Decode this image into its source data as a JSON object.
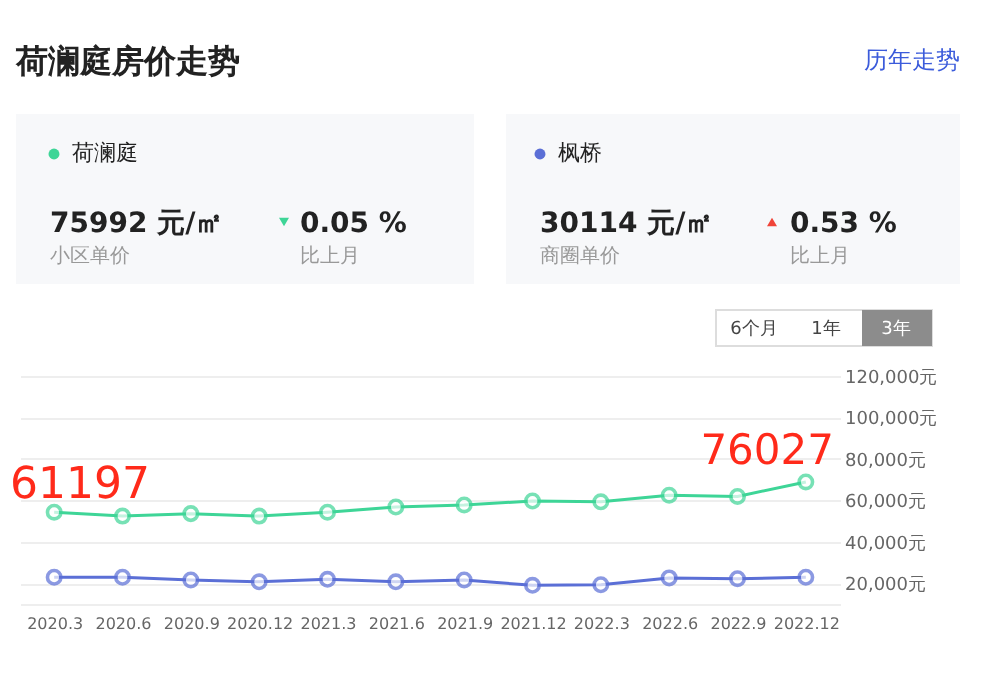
{
  "chart_data": {
    "type": "line",
    "title": "荷澜庭房价走势",
    "categories": [
      "2020.3",
      "2020.6",
      "2020.9",
      "2020.12",
      "2021.3",
      "2021.6",
      "2021.9",
      "2021.12",
      "2022.3",
      "2022.6",
      "2022.9",
      "2022.12"
    ],
    "series": [
      {
        "name": "荷澜庭",
        "color": "#3ed597",
        "values": [
          54300,
          52400,
          53600,
          52400,
          54300,
          56800,
          57800,
          59700,
          59300,
          62500,
          61900,
          68900
        ]
      },
      {
        "name": "枫桥",
        "color": "#5b6fd6",
        "values": [
          22900,
          22900,
          21600,
          20700,
          21900,
          20700,
          21600,
          19000,
          19300,
          22600,
          22200,
          22900
        ]
      }
    ],
    "ylim": [
      10000,
      120000
    ],
    "yticks": [
      {
        "value": 20000,
        "label": "20,000元"
      },
      {
        "value": 40000,
        "label": "40,000元"
      },
      {
        "value": 60000,
        "label": "60,000元"
      },
      {
        "value": 80000,
        "label": "80,000元"
      },
      {
        "value": 100000,
        "label": "100,000元"
      },
      {
        "value": 120000,
        "label": "120,000元"
      }
    ],
    "grid": "y",
    "legend": "top",
    "marker": "circle",
    "line_style": "solid",
    "annotations": [
      "历年走势",
      "75992 元/㎡",
      "小区单价",
      "0.05 %",
      "比上月",
      "30114 元/㎡",
      "商圈单价",
      "0.53 %",
      "比上月",
      "6个月",
      "1年",
      "3年",
      "61197",
      "76027"
    ]
  }
}
